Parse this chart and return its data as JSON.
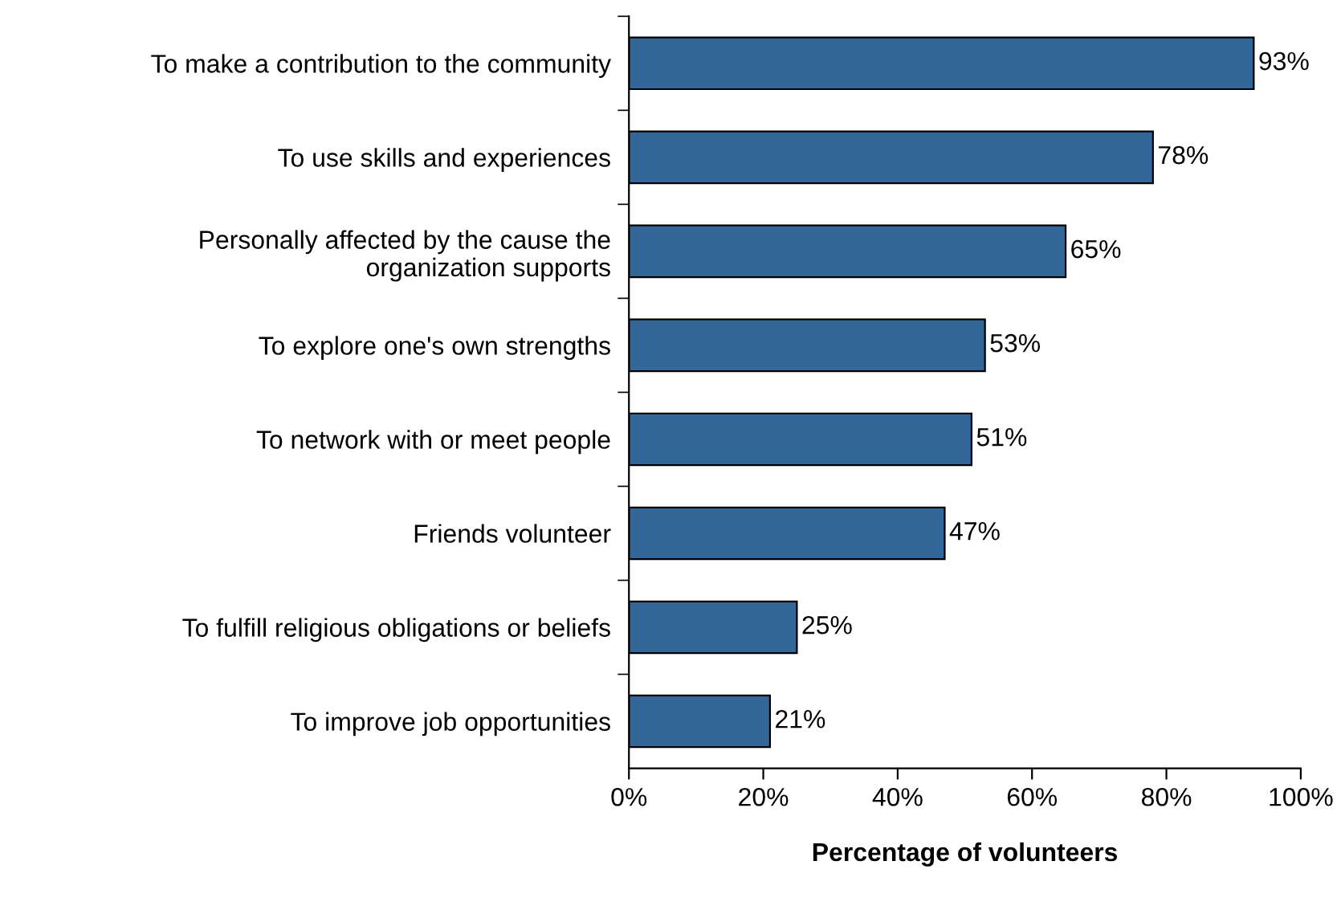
{
  "chart_data": {
    "type": "bar",
    "orientation": "horizontal",
    "xlabel": "Percentage of volunteers",
    "categories": [
      "To make a contribution to the community",
      "To use skills and experiences",
      "Personally affected by the cause the\norganization supports",
      "To explore one's own strengths",
      "To network with or meet people",
      "Friends volunteer",
      "To fulfill religious obligations or beliefs",
      "To improve job opportunities"
    ],
    "values": [
      93,
      78,
      65,
      53,
      51,
      47,
      25,
      21
    ],
    "value_labels": [
      "93%",
      "78%",
      "65%",
      "53%",
      "51%",
      "47%",
      "25%",
      "21%"
    ],
    "color": "#336699",
    "xlim": [
      0,
      100
    ],
    "xticks": [
      {
        "value": 0,
        "label": "0%"
      },
      {
        "value": 20,
        "label": "20%"
      },
      {
        "value": 40,
        "label": "40%"
      },
      {
        "value": 60,
        "label": "60%"
      },
      {
        "value": 80,
        "label": "80%"
      },
      {
        "value": 100,
        "label": "100%"
      }
    ],
    "grid": false,
    "legend": false
  }
}
